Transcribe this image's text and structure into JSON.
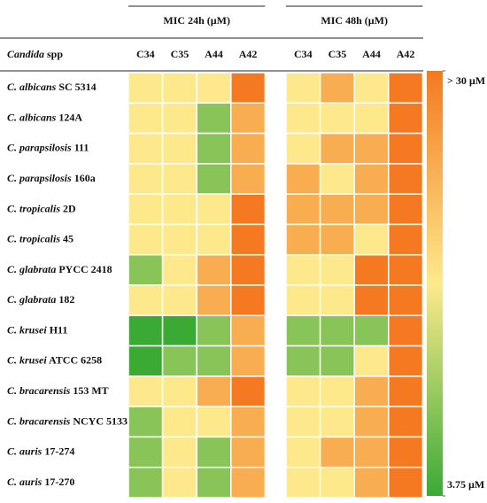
{
  "chart_data": {
    "type": "heatmap",
    "row_header": {
      "genus": "Candida",
      "suffix": "spp"
    },
    "rows": [
      {
        "species": "C. albicans",
        "strain": "SC 5314"
      },
      {
        "species": "C. albicans",
        "strain": "124A"
      },
      {
        "species": "C. parapsilosis",
        "strain": "111"
      },
      {
        "species": "C. parapsilosis",
        "strain": "160a"
      },
      {
        "species": "C. tropicalis",
        "strain": "2D"
      },
      {
        "species": "C. tropicalis",
        "strain": "45"
      },
      {
        "species": "C. glabrata",
        "strain": "PYCC 2418"
      },
      {
        "species": "C. glabrata",
        "strain": "182"
      },
      {
        "species": "C. krusei",
        "strain": "H11"
      },
      {
        "species": "C. krusei",
        "strain": "ATCC 6258"
      },
      {
        "species": "C. bracarensis",
        "strain": "153 MT"
      },
      {
        "species": "C. bracarensis",
        "strain": "NCYC 5133"
      },
      {
        "species": "C. auris",
        "strain": "17-274"
      },
      {
        "species": "C. auris",
        "strain": "17-270"
      }
    ],
    "groups": [
      {
        "title": "MIC 24h (µM)",
        "columns": [
          "C34",
          "C35",
          "A44",
          "A42"
        ],
        "values": [
          [
            17,
            17,
            17,
            30
          ],
          [
            17,
            17,
            9,
            24
          ],
          [
            17,
            17,
            9,
            24
          ],
          [
            17,
            17,
            9,
            24
          ],
          [
            17,
            17,
            17,
            30
          ],
          [
            17,
            17,
            17,
            30
          ],
          [
            9,
            17,
            24,
            30
          ],
          [
            17,
            17,
            24,
            30
          ],
          [
            3.75,
            3.75,
            9,
            24
          ],
          [
            3.75,
            9,
            9,
            24
          ],
          [
            17,
            17,
            24,
            30
          ],
          [
            9,
            17,
            17,
            24
          ],
          [
            9,
            17,
            9,
            24
          ],
          [
            9,
            17,
            9,
            24
          ]
        ]
      },
      {
        "title": "MIC 48h (µM)",
        "columns": [
          "C34",
          "C35",
          "A44",
          "A42"
        ],
        "values": [
          [
            17,
            24,
            17,
            30
          ],
          [
            17,
            17,
            17,
            30
          ],
          [
            17,
            24,
            24,
            30
          ],
          [
            24,
            17,
            24,
            30
          ],
          [
            24,
            24,
            24,
            30
          ],
          [
            24,
            24,
            17,
            30
          ],
          [
            17,
            17,
            30,
            30
          ],
          [
            17,
            17,
            30,
            30
          ],
          [
            9,
            9,
            9,
            30
          ],
          [
            9,
            9,
            17,
            30
          ],
          [
            17,
            17,
            24,
            30
          ],
          [
            17,
            17,
            24,
            30
          ],
          [
            17,
            24,
            24,
            30
          ],
          [
            17,
            17,
            24,
            30
          ]
        ]
      }
    ],
    "clim": [
      3.75,
      30
    ],
    "cticks": [
      {
        "value": 30,
        "label": "> 30 µM"
      },
      {
        "value": 3.75,
        "label": "3.75 µM"
      }
    ],
    "colors": [
      "#3aaa35",
      "#fdea8c",
      "#f47920"
    ]
  }
}
